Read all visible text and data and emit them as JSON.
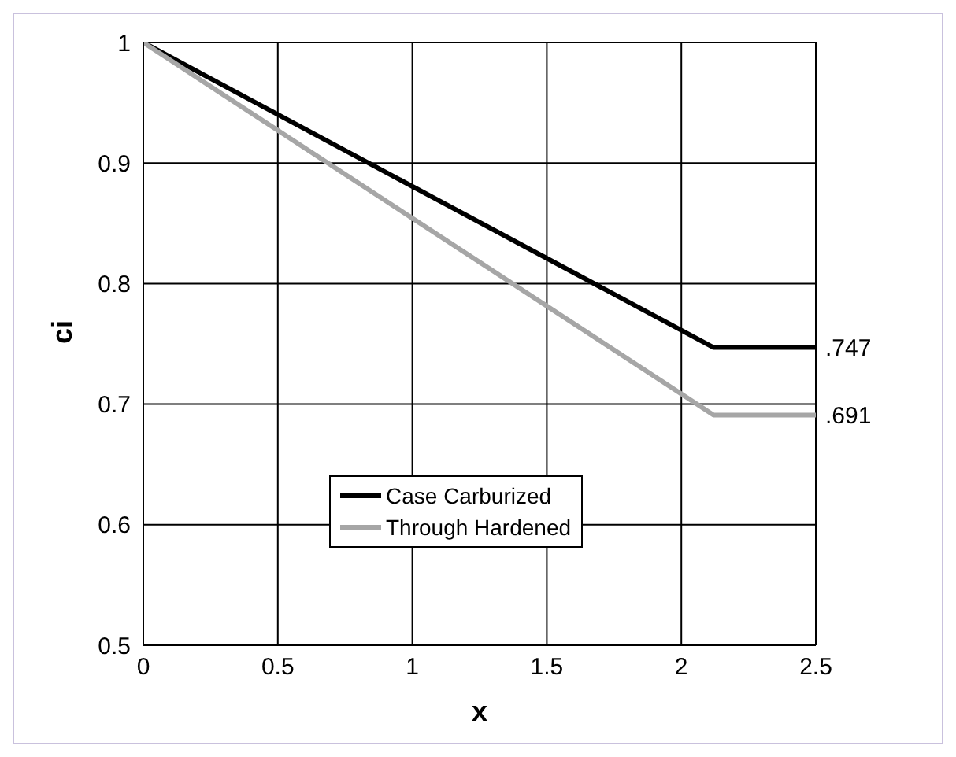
{
  "chart_data": {
    "type": "line",
    "xlabel": "x",
    "ylabel": "ci",
    "xlim": [
      0,
      2.5
    ],
    "xticks": [
      0,
      0.5,
      1,
      1.5,
      2,
      2.5
    ],
    "ylim": [
      0.5,
      1
    ],
    "yticks": [
      0.5,
      0.6,
      0.7,
      0.8,
      0.9,
      1
    ],
    "grid": true,
    "legend": "bottom",
    "marker": "none",
    "line_style": "solid",
    "series": [
      {
        "name": "Case Carburized",
        "color": "#000000",
        "x": [
          0,
          2.12,
          2.5
        ],
        "values": [
          1,
          0.747,
          0.747
        ]
      },
      {
        "name": "Through Hardened",
        "color": "#a6a6a6",
        "x": [
          0,
          2.12,
          2.5
        ],
        "values": [
          1,
          0.691,
          0.691
        ]
      }
    ],
    "annotations": [
      {
        "text": ".747",
        "x": 2.5,
        "y": 0.747
      },
      {
        "text": ".691",
        "x": 2.5,
        "y": 0.691
      }
    ]
  }
}
